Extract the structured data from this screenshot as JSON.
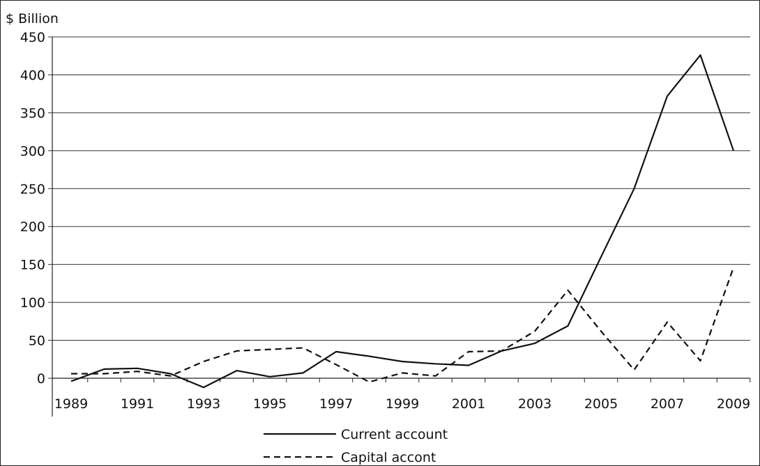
{
  "chart_data": {
    "type": "line",
    "title": "",
    "xlabel": "",
    "ylabel": "$ Billion",
    "ylim": [
      0,
      450
    ],
    "yticks": [
      0,
      50,
      100,
      150,
      200,
      250,
      300,
      350,
      400,
      450
    ],
    "x_tick_labels": [
      "1989",
      "1991",
      "1993",
      "1995",
      "1997",
      "1999",
      "2001",
      "2003",
      "2005",
      "2007",
      "2009"
    ],
    "x": [
      1989,
      1990,
      1991,
      1992,
      1993,
      1994,
      1995,
      1996,
      1997,
      1998,
      1999,
      2000,
      2001,
      2002,
      2003,
      2004,
      2005,
      2006,
      2007,
      2008,
      2009
    ],
    "grid": true,
    "legend_position": "bottom-center",
    "series": [
      {
        "name": "Current account",
        "style": "solid",
        "color": "#111111",
        "values": [
          -4,
          12,
          13,
          6,
          -12,
          10,
          2,
          7,
          35,
          29,
          22,
          19,
          17,
          36,
          46,
          69,
          160,
          250,
          372,
          426,
          300
        ]
      },
      {
        "name": "Capital accont",
        "style": "dashed",
        "color": "#111111",
        "values": [
          6,
          6,
          9,
          3,
          22,
          36,
          38,
          40,
          18,
          -5,
          7,
          3,
          35,
          36,
          62,
          116,
          62,
          11,
          74,
          23,
          146
        ]
      }
    ]
  }
}
